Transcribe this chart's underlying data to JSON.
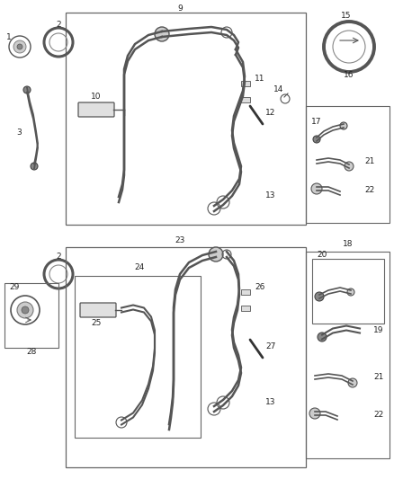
{
  "background_color": "#ffffff",
  "fig_width": 4.38,
  "fig_height": 5.33,
  "dpi": 100,
  "line_color": "#444444",
  "box_line_color": "#666666",
  "label_fontsize": 6.5,
  "part_gray": "#999999",
  "part_light": "#cccccc"
}
